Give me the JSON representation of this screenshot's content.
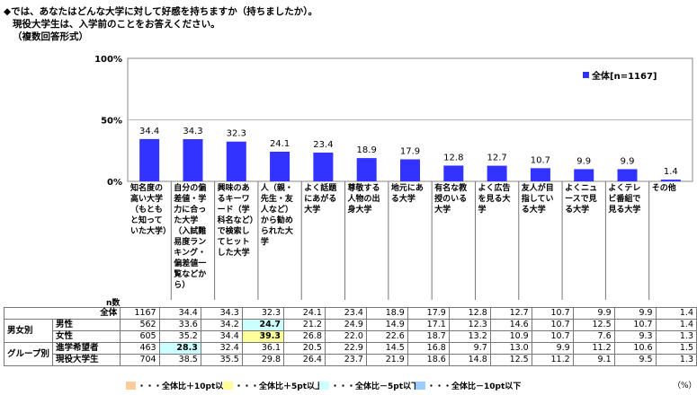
{
  "question": {
    "line1": "◆では、あなたはどんな大学に対して好感を持ちますか（持ちましたか）。",
    "line2": "現役大学生は、入学前のことをお答えください。",
    "line3": "（複数回答形式）"
  },
  "chart_data": {
    "type": "bar",
    "categories": [
      "知名度の高い大学（もともと知っていた大学）",
      "自分の偏差値・学力に合った大学（入試難易度ランキング・偏差値一覧などから）",
      "興味のあるキーワード（学科名など）で検索してヒットした大学",
      "人（親・先生・友人など）から勧められた大学",
      "よく話題にあがる大学",
      "尊敬する人物の出身大学",
      "地元にある大学",
      "有名な教授のいる大学",
      "よく広告を見る大学",
      "友人が目指している大学",
      "よくニュースで見る大学",
      "よくテレビ番組で見る大学",
      "その他"
    ],
    "series": [
      {
        "name": "全体[n=1167]",
        "values": [
          34.4,
          34.3,
          32.3,
          24.1,
          23.4,
          18.9,
          17.9,
          12.8,
          12.7,
          10.7,
          9.9,
          9.9,
          1.4
        ]
      }
    ],
    "value_labels": [
      "34.4",
      "34.3",
      "32.3",
      "24.1",
      "23.4",
      "18.9",
      "17.9",
      "12.8",
      "12.7",
      "10.7",
      "9.9",
      "9.9",
      "1.4"
    ],
    "yticks": [
      "0%",
      "50%",
      "100%"
    ],
    "ylim": [
      0,
      100
    ],
    "legend_position": "top-right",
    "color": "#3333ff"
  },
  "table": {
    "n_header": "n数",
    "rows": [
      {
        "group": "",
        "label": "全体",
        "n": "1167",
        "values": [
          "34.4",
          "34.3",
          "32.3",
          "24.1",
          "23.4",
          "18.9",
          "17.9",
          "12.8",
          "12.7",
          "10.7",
          "9.9",
          "9.9",
          "1.4"
        ],
        "hl": [
          "",
          "",
          "",
          "",
          "",
          "",
          "",
          "",
          "",
          "",
          "",
          "",
          ""
        ]
      },
      {
        "group": "男女別",
        "label": "男性",
        "n": "562",
        "values": [
          "33.6",
          "34.2",
          "24.7",
          "21.2",
          "24.9",
          "14.9",
          "17.1",
          "12.3",
          "14.6",
          "10.7",
          "12.5",
          "10.7",
          "1.4"
        ],
        "hl": [
          "",
          "",
          "b",
          "",
          "",
          "",
          "",
          "",
          "",
          "",
          "",
          "",
          ""
        ]
      },
      {
        "group": "",
        "label": "女性",
        "n": "605",
        "values": [
          "35.2",
          "34.4",
          "39.3",
          "26.8",
          "22.0",
          "22.6",
          "18.7",
          "13.2",
          "10.9",
          "10.7",
          "7.6",
          "9.3",
          "1.3"
        ],
        "hl": [
          "",
          "",
          "y",
          "",
          "",
          "",
          "",
          "",
          "",
          "",
          "",
          "",
          ""
        ]
      },
      {
        "group": "グループ別",
        "label": "進学希望者",
        "n": "463",
        "values": [
          "28.3",
          "32.4",
          "36.1",
          "20.5",
          "22.9",
          "14.5",
          "16.8",
          "9.7",
          "13.0",
          "9.9",
          "11.2",
          "10.6",
          "1.5"
        ],
        "hl": [
          "b",
          "",
          "",
          "",
          "",
          "",
          "",
          "",
          "",
          "",
          "",
          "",
          ""
        ]
      },
      {
        "group": "",
        "label": "現役大学生",
        "n": "704",
        "values": [
          "38.5",
          "35.5",
          "29.8",
          "26.4",
          "23.7",
          "21.9",
          "18.6",
          "14.8",
          "12.5",
          "11.2",
          "9.1",
          "9.5",
          "1.3"
        ],
        "hl": [
          "",
          "",
          "",
          "",
          "",
          "",
          "",
          "",
          "",
          "",
          "",
          "",
          ""
        ]
      }
    ]
  },
  "legend_notes": [
    {
      "label": "・・・全体比＋10pt以上",
      "color": "#ffcc99"
    },
    {
      "label": "・・・全体比＋5pt以上",
      "color": "#ffff99"
    },
    {
      "label": "・・・全体比－5pt以下",
      "color": "#ccffff"
    },
    {
      "label": "・・・全体比－10pt以下",
      "color": "#99ccff"
    }
  ],
  "unit_note": "（%）"
}
